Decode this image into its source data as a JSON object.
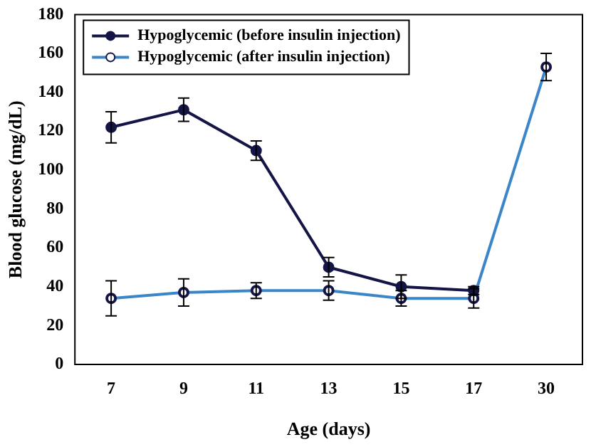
{
  "chart_data": {
    "type": "line",
    "xlabel": "Age (days)",
    "ylabel": "Blood glucose (mg/dL)",
    "categories": [
      "7",
      "9",
      "11",
      "13",
      "15",
      "17",
      "30"
    ],
    "ylim": [
      0,
      180
    ],
    "yticks": [
      0,
      20,
      40,
      60,
      80,
      100,
      120,
      140,
      160,
      180
    ],
    "grid": false,
    "legend": "top left",
    "marker": "circle",
    "line_style": "solid",
    "series": [
      {
        "name": "Hypoglycemic (before insulin injection)",
        "color": "#141446",
        "values": [
          122,
          131,
          110,
          50,
          40,
          38,
          null
        ],
        "errors": [
          8,
          6,
          5,
          5,
          6,
          2,
          null
        ]
      },
      {
        "name": "Hypoglycemic (after insulin injection)",
        "color": "#3a86c8",
        "values": [
          34,
          37,
          38,
          38,
          34,
          34,
          153
        ],
        "errors": [
          9,
          7,
          4,
          5,
          4,
          5,
          7
        ]
      }
    ]
  }
}
